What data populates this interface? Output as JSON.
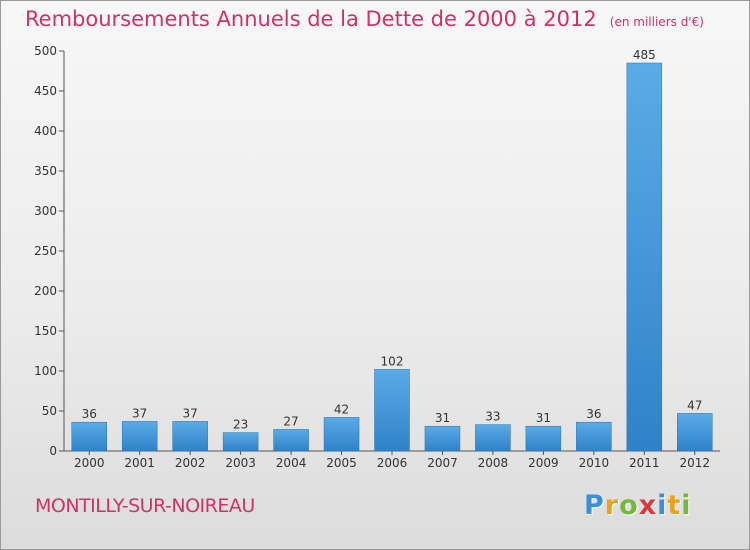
{
  "title": "Remboursements Annuels de la Dette de 2000 à 2012",
  "unit": "(en milliers d'€)",
  "commune": "MONTILLY-SUR-NOIREAU",
  "brand": {
    "letters": [
      "P",
      "r",
      "o",
      "x",
      "i",
      "t",
      "i"
    ],
    "letter_colors": [
      "#3a8fd8",
      "#e8a21d",
      "#74b83d",
      "#d63a3a",
      "#3a8fd8",
      "#e8a21d",
      "#74b83d"
    ]
  },
  "colors": {
    "title": "#cc3366",
    "bar_light": "#5aabe6",
    "bar_dark": "#2f82c8",
    "axis": "#555555"
  },
  "chart_data": {
    "type": "bar",
    "categories": [
      "2000",
      "2001",
      "2002",
      "2003",
      "2004",
      "2005",
      "2006",
      "2007",
      "2008",
      "2009",
      "2010",
      "2011",
      "2012"
    ],
    "values": [
      36,
      37,
      37,
      23,
      27,
      42,
      102,
      31,
      33,
      31,
      36,
      485,
      47
    ],
    "data_labels": [
      "36",
      "37",
      "37",
      "23",
      "27",
      "42",
      "102",
      "31",
      "33",
      "31",
      "36",
      "485",
      "47"
    ],
    "y_ticks": [
      0,
      50,
      100,
      150,
      200,
      250,
      300,
      350,
      400,
      450,
      500
    ],
    "ylim": [
      0,
      500
    ],
    "grid": false,
    "xlabel": "",
    "ylabel": ""
  }
}
